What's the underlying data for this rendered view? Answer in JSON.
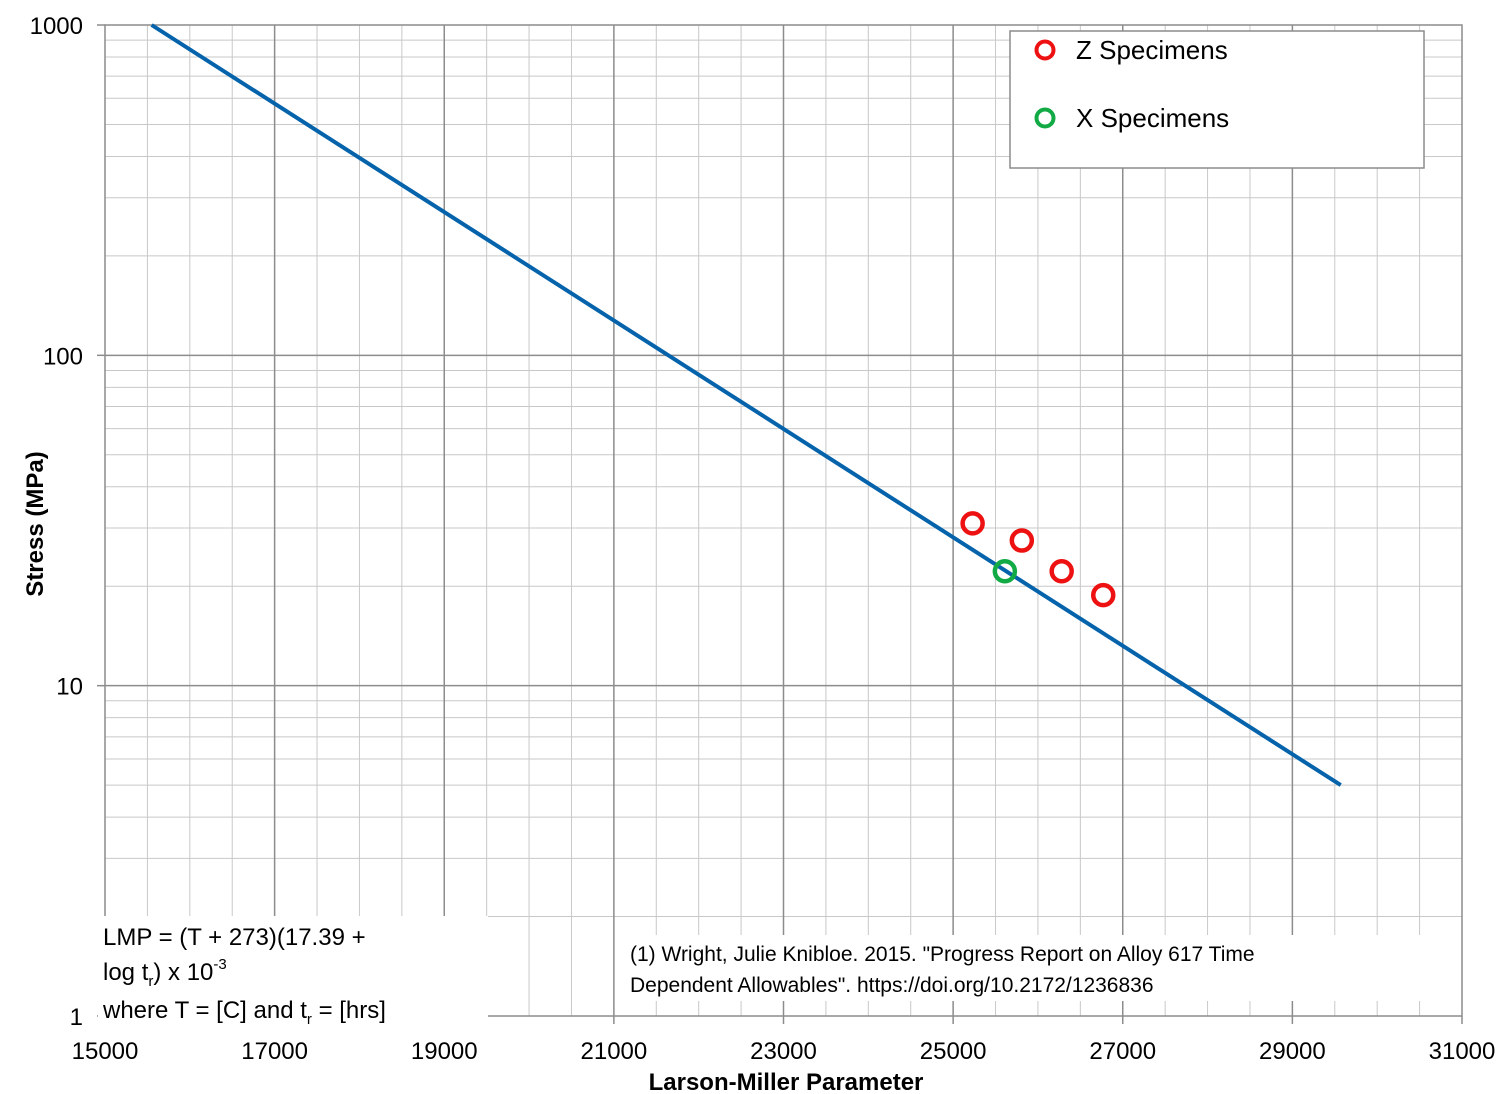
{
  "chart_data": {
    "type": "scatter",
    "xlabel": "Larson-Miller Parameter",
    "ylabel": "Stress (MPa)",
    "xlim": [
      15000,
      31000
    ],
    "ylim": [
      1,
      1000
    ],
    "yscale": "log",
    "grid": true,
    "x_ticks": [
      "15000",
      "17000",
      "19000",
      "21000",
      "23000",
      "25000",
      "27000",
      "29000",
      "31000"
    ],
    "y_ticks": [
      "1",
      "10",
      "100",
      "1000"
    ],
    "legend_position": "top-right",
    "series": [
      {
        "type": "line",
        "color": "#0563AB",
        "x": [
          15550,
          29570
        ],
        "y": [
          1000,
          5.0
        ]
      },
      {
        "name": "Z Specimens",
        "type": "scatter",
        "marker": "open-circle",
        "color": "#EE1111",
        "x": [
          25230,
          25810,
          26280,
          26770
        ],
        "y": [
          31,
          27.5,
          22.2,
          18.8
        ]
      },
      {
        "name": "X Specimens",
        "type": "scatter",
        "marker": "open-circle",
        "color": "#11AA44",
        "x": [
          25610
        ],
        "y": [
          22.2
        ]
      }
    ],
    "annotations": {
      "formula_line1": "LMP = (T + 273)(17.39 +",
      "formula_line2a": "log t",
      "formula_line2_sub": "r",
      "formula_line2b": ") x 10",
      "formula_line2_sup": "-3",
      "formula_line3a": "where T = [C] and t",
      "formula_line3_sub": "r",
      "formula_line3b": " = [hrs]",
      "reference_line1": "(1) Wright, Julie Knibloe. 2015. \"Progress Report on Alloy 617 Time",
      "reference_line2": "Dependent Allowables\". https://doi.org/10.2172/1236836"
    }
  }
}
